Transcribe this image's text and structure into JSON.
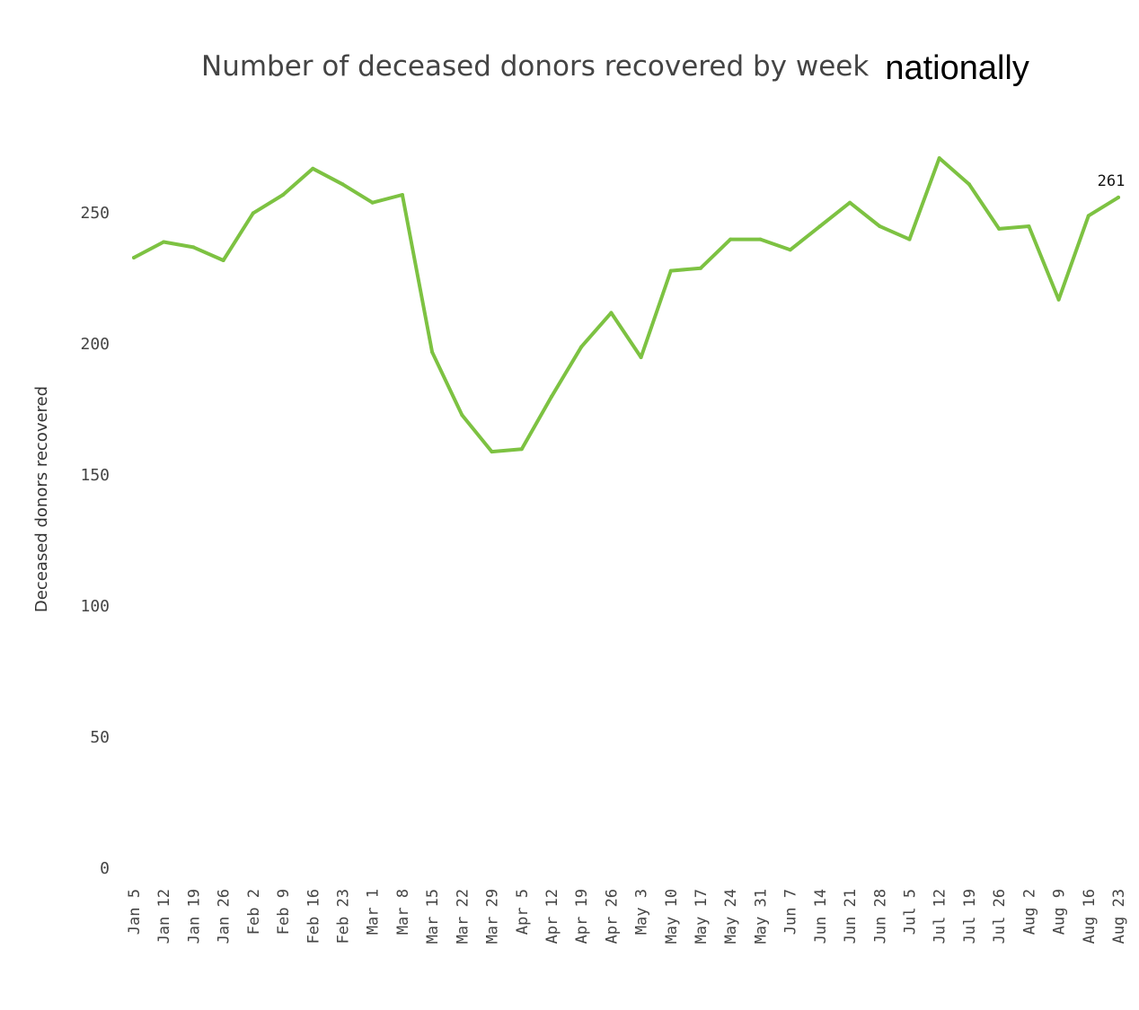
{
  "chart_data": {
    "type": "line",
    "title": "Number of deceased donors recovered by week",
    "title_suffix": "nationally",
    "xlabel": "",
    "ylabel": "Deceased donors recovered",
    "ylim": [
      0,
      285
    ],
    "yticks": [
      0,
      50,
      100,
      150,
      200,
      250
    ],
    "grid": false,
    "legend": "none",
    "categories": [
      "Jan 5",
      "Jan 12",
      "Jan 19",
      "Jan 26",
      "Feb 2",
      "Feb 9",
      "Feb 16",
      "Feb 23",
      "Mar 1",
      "Mar 8",
      "Mar 15",
      "Mar 22",
      "Mar 29",
      "Apr 5",
      "Apr 12",
      "Apr 19",
      "Apr 26",
      "May 3",
      "May 10",
      "May 17",
      "May 24",
      "May 31",
      "Jun 7",
      "Jun 14",
      "Jun 21",
      "Jun 28",
      "Jul 5",
      "Jul 12",
      "Jul 19",
      "Jul 26",
      "Aug 2",
      "Aug 9",
      "Aug 16",
      "Aug 23"
    ],
    "series": [
      {
        "color": "#7dc242",
        "values": [
          238,
          244,
          242,
          237,
          255,
          262,
          272,
          266,
          259,
          262,
          202,
          178,
          164,
          165,
          185,
          204,
          217,
          200,
          233,
          234,
          245,
          245,
          241,
          250,
          259,
          250,
          245,
          276,
          266,
          249,
          250,
          222,
          254,
          261
        ]
      }
    ],
    "data_labels": [
      {
        "category": "Aug 23",
        "text": "261"
      }
    ]
  }
}
